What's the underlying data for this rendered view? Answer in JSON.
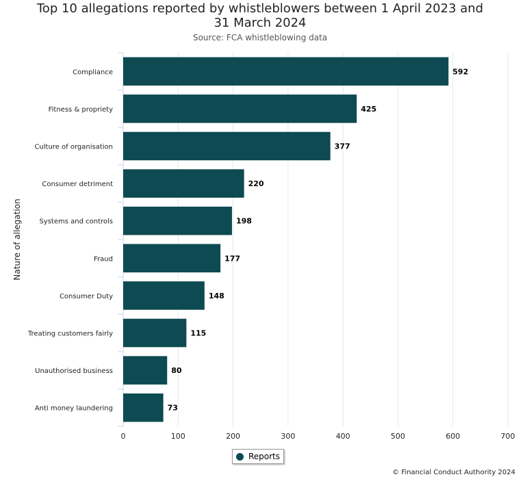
{
  "chart_data": {
    "type": "bar",
    "orientation": "horizontal",
    "title": "Top 10 allegations reported by whistleblowers between 1 April 2023 and 31 March 2024",
    "subtitle": "Source: FCA whistleblowing data",
    "ylabel": "Nature of allegation",
    "xlabel": "",
    "categories": [
      "Compliance",
      "Fitness & propriety",
      "Culture of organisation",
      "Consumer detriment",
      "Systems and controls",
      "Fraud",
      "Consumer Duty",
      "Treating customers fairly",
      "Unauthorised business",
      "Anti money laundering"
    ],
    "series": [
      {
        "name": "Reports",
        "values": [
          592,
          425,
          377,
          220,
          198,
          177,
          148,
          115,
          80,
          73
        ],
        "color": "#0d4a52"
      }
    ],
    "xlim": [
      0,
      700
    ],
    "xticks": [
      0,
      100,
      200,
      300,
      400,
      500,
      600,
      700
    ],
    "grid": true,
    "legend_position": "bottom-center"
  },
  "credit": "© Financial Conduct Authority 2024"
}
